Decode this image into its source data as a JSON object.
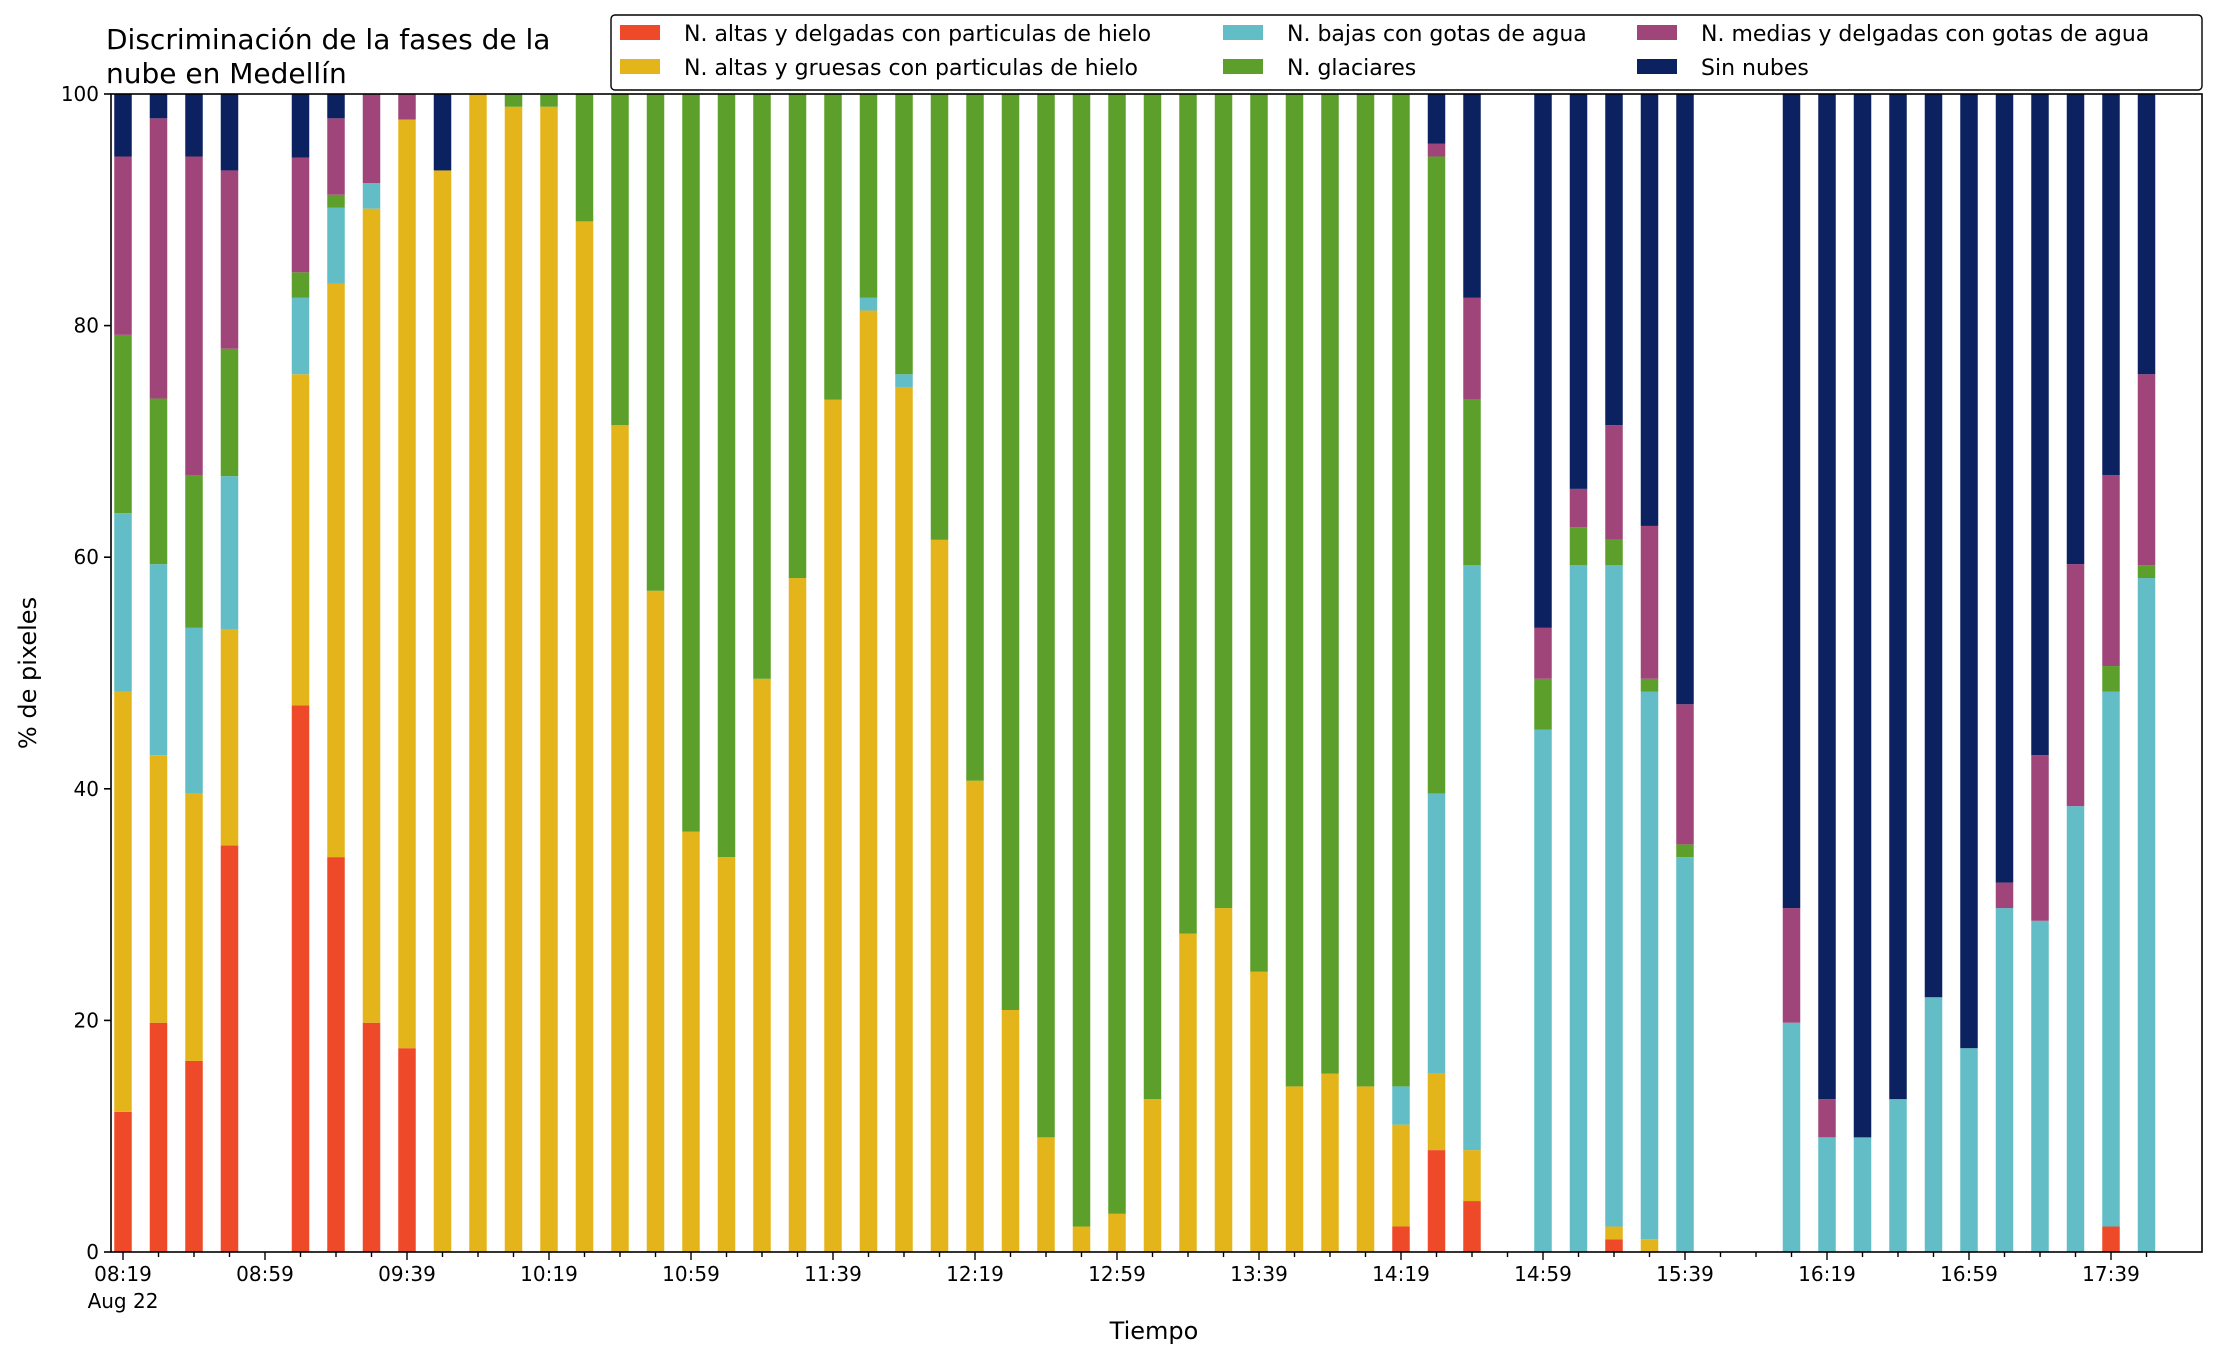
{
  "chart_data": {
    "type": "bar",
    "stacked": true,
    "title": [
      "Discriminación de la fases de la",
      "nube en Medellín"
    ],
    "xlabel": "Tiempo",
    "ylabel": "% de pixeles",
    "ylim": [
      0,
      100
    ],
    "y_ticks": [
      "0",
      "20",
      "40",
      "60",
      "80",
      "100"
    ],
    "x_tick_labels": [
      "08:19",
      "08:59",
      "09:39",
      "10:19",
      "10:59",
      "11:39",
      "12:19",
      "12:59",
      "13:39",
      "14:19",
      "14:59",
      "15:39",
      "16:19",
      "16:59",
      "17:39"
    ],
    "x_date_label": "Aug 22",
    "legend_position": "top-right",
    "grid": false,
    "categories": [
      "08:19",
      "08:29",
      "08:39",
      "08:49",
      "08:59",
      "09:09",
      "09:19",
      "09:29",
      "09:39",
      "09:49",
      "09:59",
      "10:09",
      "10:19",
      "10:29",
      "10:39",
      "10:49",
      "10:59",
      "11:09",
      "11:19",
      "11:29",
      "11:39",
      "11:49",
      "11:59",
      "12:09",
      "12:19",
      "12:29",
      "12:39",
      "12:49",
      "12:59",
      "13:09",
      "13:19",
      "13:29",
      "13:39",
      "13:49",
      "13:59",
      "14:09",
      "14:19",
      "14:29",
      "14:39",
      "14:49",
      "14:59",
      "15:09",
      "15:19",
      "15:29",
      "15:39",
      "15:49",
      "15:59",
      "16:09",
      "16:19",
      "16:29",
      "16:39",
      "16:49",
      "16:59",
      "17:09",
      "17:19",
      "17:29",
      "17:39",
      "17:49"
    ],
    "series": [
      {
        "name": "N. altas y delgadas con particulas de hielo",
        "color": "#ee4a2a",
        "values": [
          12.1,
          19.8,
          16.5,
          35.1,
          null,
          47.2,
          34.1,
          19.8,
          17.6,
          0,
          0,
          0,
          0,
          0,
          0,
          0,
          0,
          0,
          0,
          0,
          0,
          0,
          0,
          0,
          0,
          0,
          0,
          0,
          0,
          0,
          0,
          0,
          0,
          0,
          0,
          0,
          2.2,
          8.8,
          4.4,
          null,
          0,
          0,
          1.1,
          0,
          0,
          null,
          null,
          0,
          0,
          0,
          0,
          0,
          0,
          0,
          0,
          0,
          2.2,
          0
        ]
      },
      {
        "name": "N. altas y gruesas con particulas de hielo",
        "color": "#e3b51a",
        "values": [
          36.3,
          23.1,
          23.1,
          18.7,
          null,
          28.6,
          49.5,
          70.3,
          80.2,
          93.4,
          100,
          98.9,
          98.9,
          89.0,
          71.4,
          57.1,
          36.3,
          34.1,
          49.5,
          58.2,
          73.6,
          81.3,
          74.7,
          61.5,
          40.7,
          20.9,
          9.9,
          2.2,
          3.3,
          13.2,
          27.5,
          29.7,
          24.2,
          14.3,
          15.4,
          14.3,
          8.8,
          6.6,
          4.4,
          null,
          0,
          0,
          1.1,
          1.1,
          0,
          null,
          null,
          0,
          0,
          0,
          0,
          0,
          0,
          0,
          0,
          0,
          0,
          0
        ]
      },
      {
        "name": "N. bajas con gotas de agua",
        "color": "#63bdc7",
        "values": [
          15.4,
          16.5,
          14.3,
          13.2,
          null,
          6.6,
          6.6,
          2.2,
          0,
          0,
          0,
          0,
          0,
          0,
          0,
          0,
          0,
          0,
          0,
          0,
          0,
          1.1,
          1.1,
          0,
          0,
          0,
          0,
          0,
          0,
          0,
          0,
          0,
          0,
          0,
          0,
          0,
          3.3,
          24.2,
          50.5,
          null,
          45.1,
          59.3,
          57.1,
          47.3,
          34.1,
          null,
          null,
          19.8,
          9.9,
          9.9,
          13.2,
          22.0,
          17.6,
          29.7,
          28.6,
          38.5,
          46.2,
          58.2
        ]
      },
      {
        "name": "N. glaciares",
        "color": "#5c9f2b",
        "values": [
          15.4,
          14.3,
          13.2,
          11.0,
          null,
          2.2,
          1.1,
          0,
          0,
          0,
          0,
          1.1,
          1.1,
          11.0,
          28.6,
          42.9,
          63.7,
          65.9,
          50.5,
          41.8,
          26.4,
          17.6,
          24.2,
          38.5,
          59.3,
          79.1,
          90.1,
          97.8,
          96.7,
          86.8,
          72.5,
          70.3,
          75.8,
          85.7,
          84.6,
          85.7,
          85.7,
          55.0,
          14.3,
          null,
          4.4,
          3.3,
          2.2,
          1.1,
          1.1,
          null,
          null,
          0,
          0,
          0,
          0,
          0,
          0,
          0,
          0,
          0,
          2.2,
          1.1
        ]
      },
      {
        "name": "N. medias y delgadas con gotas de agua",
        "color": "#a0457a",
        "values": [
          15.4,
          24.2,
          27.5,
          15.4,
          null,
          9.9,
          6.6,
          7.7,
          2.2,
          0,
          0,
          0,
          0,
          0,
          0,
          0,
          0,
          0,
          0,
          0,
          0,
          0,
          0,
          0,
          0,
          0,
          0,
          0,
          0,
          0,
          0,
          0,
          0,
          0,
          0,
          0,
          0,
          1.1,
          8.8,
          null,
          4.4,
          3.3,
          9.9,
          13.2,
          12.1,
          null,
          null,
          9.9,
          3.3,
          0,
          0,
          0,
          0,
          2.2,
          14.3,
          20.9,
          16.5,
          16.5
        ]
      },
      {
        "name": "Sin nubes",
        "color": "#0b2160",
        "values": [
          5.4,
          2.1,
          5.4,
          6.6,
          null,
          5.5,
          2.1,
          0,
          0,
          6.6,
          0,
          0,
          0,
          0,
          0,
          0,
          0,
          0,
          0,
          0,
          0,
          0,
          0,
          0,
          0,
          0,
          0,
          0,
          0,
          0,
          0,
          0,
          0,
          0,
          0,
          0,
          0,
          4.3,
          17.6,
          null,
          46.1,
          34.1,
          28.6,
          37.3,
          52.7,
          null,
          null,
          70.3,
          86.8,
          90.1,
          86.8,
          78.0,
          82.4,
          68.1,
          57.1,
          40.6,
          32.9,
          24.2
        ]
      }
    ]
  }
}
